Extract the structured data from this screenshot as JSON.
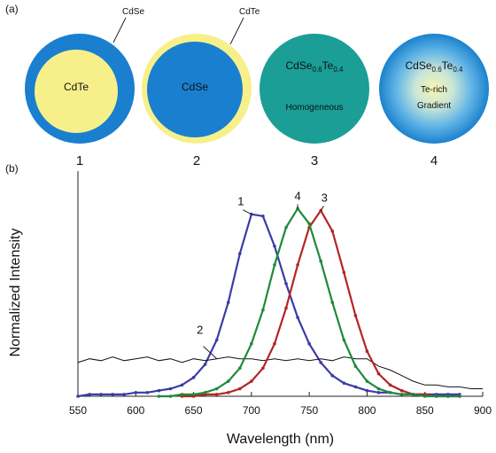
{
  "panel_a": {
    "label": "(a)",
    "particles": [
      {
        "number": "1",
        "core": "CdTe",
        "shell": "CdSe"
      },
      {
        "number": "2",
        "core": "CdSe",
        "shell": "CdTe"
      },
      {
        "number": "3",
        "formula": [
          "CdSe",
          "0.6",
          "Te",
          "0.4"
        ],
        "description": "Homogeneous"
      },
      {
        "number": "4",
        "formula": [
          "CdSe",
          "0.6",
          "Te",
          "0.4"
        ],
        "core": "Te-rich",
        "description": "Gradient"
      }
    ]
  },
  "panel_b": {
    "label": "(b)"
  },
  "chart_data": {
    "type": "line",
    "xlabel": "Wavelength (nm)",
    "ylabel": "Normalized Intensity",
    "x": [
      550,
      560,
      570,
      580,
      590,
      600,
      610,
      620,
      630,
      640,
      650,
      660,
      670,
      680,
      690,
      700,
      710,
      720,
      730,
      740,
      750,
      760,
      770,
      780,
      790,
      800,
      810,
      820,
      830,
      840,
      850,
      860,
      870,
      880,
      890,
      900
    ],
    "xlim": [
      550,
      900
    ],
    "xticks": [
      550,
      600,
      650,
      700,
      750,
      800,
      850,
      900
    ],
    "ylim": [
      0,
      1.2
    ],
    "series": [
      {
        "name": "1",
        "color": "#3b3ba8",
        "values": [
          0,
          0.01,
          0.01,
          0.01,
          0.01,
          0.02,
          0.02,
          0.03,
          0.04,
          0.06,
          0.1,
          0.17,
          0.3,
          0.5,
          0.76,
          0.97,
          0.96,
          0.8,
          0.6,
          0.42,
          0.28,
          0.18,
          0.11,
          0.07,
          0.05,
          0.03,
          0.02,
          0.02,
          0.01,
          0.01,
          0.01,
          0.01,
          0.01,
          0.01,
          null,
          null
        ]
      },
      {
        "name": "2",
        "color": "#111111",
        "values": [
          0.18,
          0.2,
          0.19,
          0.21,
          0.19,
          0.2,
          0.21,
          0.19,
          0.2,
          0.18,
          0.2,
          0.19,
          0.2,
          0.21,
          0.2,
          0.2,
          0.19,
          0.2,
          0.19,
          0.2,
          0.19,
          0.2,
          0.19,
          0.21,
          0.2,
          0.2,
          0.16,
          0.14,
          0.11,
          0.08,
          0.06,
          0.06,
          0.05,
          0.05,
          0.04,
          0.04
        ]
      },
      {
        "name": "3",
        "color": "#b52424",
        "values": [
          null,
          null,
          null,
          null,
          null,
          null,
          null,
          null,
          null,
          0,
          0,
          0.01,
          0.01,
          0.02,
          0.04,
          0.08,
          0.15,
          0.28,
          0.47,
          0.7,
          0.9,
          0.99,
          0.88,
          0.66,
          0.43,
          0.24,
          0.12,
          0.06,
          0.03,
          0.01,
          0.01,
          0,
          0,
          0,
          null,
          null
        ]
      },
      {
        "name": "4",
        "color": "#1d8a3c",
        "values": [
          null,
          null,
          null,
          null,
          null,
          null,
          null,
          0,
          0,
          0.01,
          0.01,
          0.02,
          0.04,
          0.08,
          0.15,
          0.28,
          0.46,
          0.7,
          0.9,
          1.0,
          0.92,
          0.72,
          0.5,
          0.3,
          0.16,
          0.08,
          0.04,
          0.02,
          0.01,
          0.01,
          0,
          0,
          0,
          0,
          null,
          null
        ]
      }
    ]
  }
}
